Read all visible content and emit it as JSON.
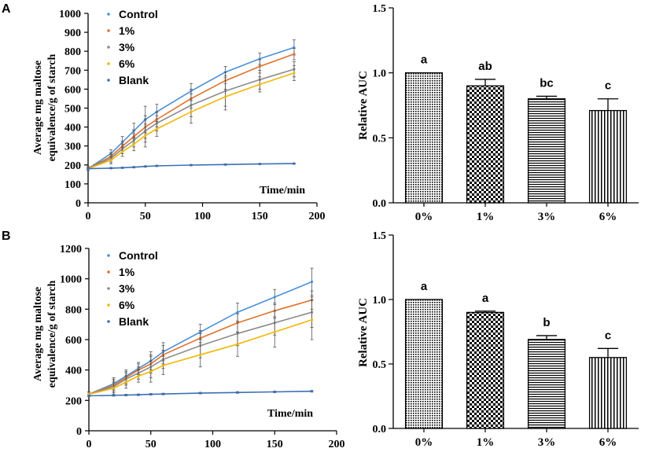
{
  "figure": {
    "panel_labels": [
      "A",
      "B"
    ]
  },
  "chart_data": [
    {
      "type": "line",
      "panel": "A",
      "ylabel_line1": "Average mg maltose",
      "ylabel_line2": "equivalence/g of starch",
      "xlabel": "Time/min",
      "xlim": [
        0,
        200
      ],
      "ylim": [
        0,
        1000
      ],
      "xticks": [
        0,
        50,
        100,
        150,
        200
      ],
      "yticks": [
        0,
        100,
        200,
        300,
        400,
        500,
        600,
        700,
        800,
        900,
        1000
      ],
      "x": [
        0,
        20,
        30,
        40,
        50,
        60,
        90,
        120,
        150,
        180
      ],
      "series": [
        {
          "name": "Control",
          "color": "#4a90d9",
          "values": [
            180,
            260,
            320,
            380,
            440,
            480,
            590,
            690,
            760,
            820
          ],
          "errors": [
            10,
            20,
            30,
            40,
            70,
            40,
            40,
            30,
            30,
            40
          ]
        },
        {
          "name": "1%",
          "color": "#e0712b",
          "values": [
            180,
            245,
            300,
            350,
            400,
            440,
            550,
            645,
            720,
            785
          ],
          "errors": [
            10,
            20,
            25,
            35,
            60,
            40,
            50,
            45,
            35,
            30
          ]
        },
        {
          "name": "3%",
          "color": "#8c8c8c",
          "values": [
            180,
            235,
            285,
            330,
            380,
            420,
            515,
            590,
            650,
            705
          ],
          "errors": [
            10,
            20,
            25,
            35,
            60,
            40,
            60,
            80,
            50,
            40
          ]
        },
        {
          "name": "6%",
          "color": "#f2b705",
          "values": [
            180,
            225,
            270,
            310,
            355,
            390,
            480,
            560,
            625,
            685
          ],
          "errors": [
            10,
            20,
            25,
            35,
            60,
            40,
            60,
            70,
            40,
            40
          ]
        },
        {
          "name": "Blank",
          "color": "#3d6fb6",
          "values": [
            180,
            183,
            185,
            188,
            192,
            195,
            199,
            202,
            205,
            207
          ],
          "errors": [
            3,
            3,
            3,
            3,
            3,
            3,
            3,
            3,
            3,
            3
          ]
        }
      ]
    },
    {
      "type": "bar",
      "panel": "A",
      "ylabel": "Relative AUC",
      "ylim": [
        0,
        1.5
      ],
      "yticks": [
        "0.0",
        "0.5",
        "1.0",
        "1.5"
      ],
      "categories": [
        "0%",
        "1%",
        "3%",
        "6%"
      ],
      "values": [
        1.0,
        0.9,
        0.8,
        0.71
      ],
      "errors": [
        0,
        0.05,
        0.02,
        0.09
      ],
      "letters": [
        "a",
        "ab",
        "bc",
        "c"
      ],
      "patterns": [
        "dots",
        "checker",
        "hlines",
        "vlines"
      ]
    },
    {
      "type": "line",
      "panel": "B",
      "ylabel_line1": "Average mg maltose",
      "ylabel_line2": "equivalence/g of starch",
      "xlabel": "Time/min",
      "xlim": [
        0,
        200
      ],
      "ylim": [
        0,
        1200
      ],
      "xticks": [
        0,
        50,
        100,
        150,
        200
      ],
      "yticks": [
        0,
        200,
        400,
        600,
        800,
        1000,
        1200
      ],
      "x": [
        0,
        20,
        30,
        40,
        50,
        60,
        90,
        120,
        150,
        180
      ],
      "series": [
        {
          "name": "Control",
          "color": "#4a90d9",
          "values": [
            240,
            310,
            360,
            410,
            460,
            520,
            650,
            780,
            880,
            980
          ],
          "errors": [
            15,
            40,
            40,
            40,
            60,
            60,
            50,
            60,
            50,
            90
          ]
        },
        {
          "name": "1%",
          "color": "#e0712b",
          "values": [
            240,
            300,
            350,
            400,
            440,
            500,
            610,
            710,
            790,
            860
          ],
          "errors": [
            15,
            40,
            40,
            40,
            60,
            60,
            50,
            60,
            50,
            60
          ]
        },
        {
          "name": "3%",
          "color": "#8c8c8c",
          "values": [
            240,
            290,
            340,
            380,
            420,
            470,
            560,
            640,
            710,
            780
          ],
          "errors": [
            15,
            40,
            40,
            40,
            70,
            60,
            80,
            80,
            80,
            100
          ]
        },
        {
          "name": "6%",
          "color": "#f2b705",
          "values": [
            240,
            280,
            320,
            360,
            390,
            430,
            500,
            570,
            650,
            730
          ],
          "errors": [
            15,
            40,
            40,
            40,
            70,
            60,
            80,
            80,
            100,
            130
          ]
        },
        {
          "name": "Blank",
          "color": "#3d6fb6",
          "values": [
            230,
            233,
            235,
            237,
            240,
            242,
            248,
            252,
            256,
            260
          ],
          "errors": [
            5,
            5,
            5,
            5,
            5,
            5,
            5,
            5,
            5,
            5
          ]
        }
      ]
    },
    {
      "type": "bar",
      "panel": "B",
      "ylabel": "Relative AUC",
      "ylim": [
        0,
        1.5
      ],
      "yticks": [
        "0.0",
        "0.5",
        "1.0",
        "1.5"
      ],
      "categories": [
        "0%",
        "1%",
        "3%",
        "6%"
      ],
      "values": [
        1.0,
        0.9,
        0.69,
        0.55
      ],
      "errors": [
        0,
        0.01,
        0.03,
        0.07
      ],
      "letters": [
        "a",
        "a",
        "b",
        "c"
      ],
      "patterns": [
        "dots",
        "checker",
        "hlines",
        "vlines"
      ]
    }
  ]
}
